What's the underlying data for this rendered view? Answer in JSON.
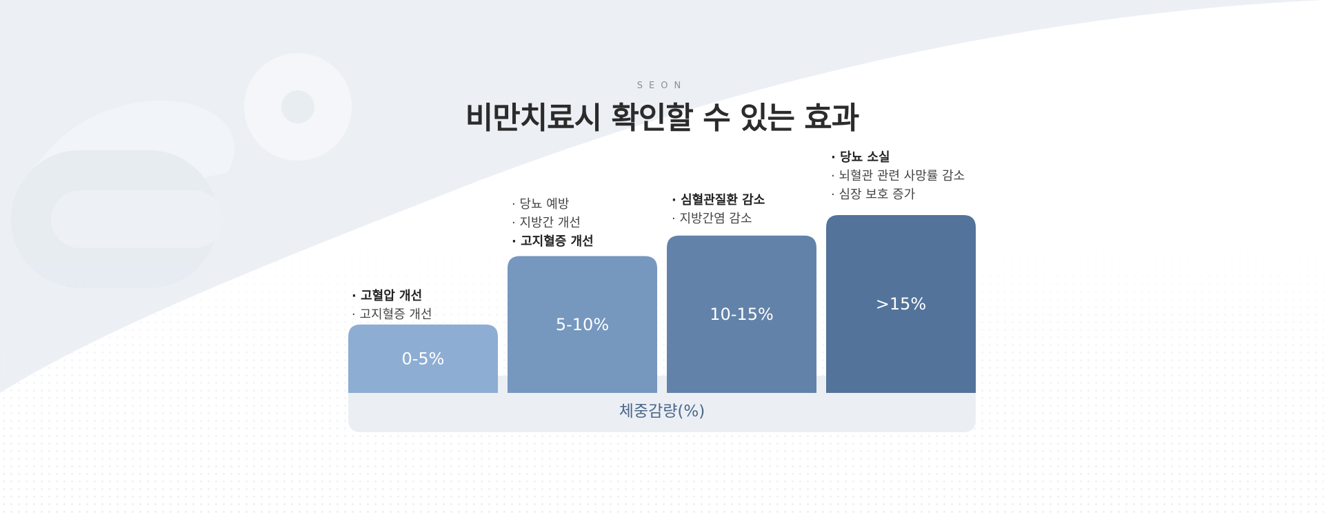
{
  "brand": "SEON",
  "title": "비만치료시 확인할 수 있는 효과",
  "colors": {
    "bar_1": "#8dadd3",
    "bar_2": "#7697be",
    "bar_3": "#6282a9",
    "bar_4": "#53739a",
    "axis_band": "#ebeff4",
    "axis_text": "#4a6788",
    "bar_text": "#ffffff"
  },
  "chart_data": {
    "type": "bar",
    "title": "비만치료시 확인할 수 있는 효과",
    "xlabel": "체중감량(%)",
    "ylabel": "",
    "categories": [
      "0-5%",
      "5-10%",
      "10-15%",
      ">15%"
    ],
    "values": [
      1,
      2,
      2.3,
      2.6
    ],
    "ylim": [
      0,
      2.6
    ],
    "grid": false,
    "legend": "none",
    "annotations": [
      {
        "category": "0-5%",
        "items": [
          {
            "text": "· 고혈압 개선",
            "bold": true
          },
          {
            "text": "· 고지혈증 개선",
            "bold": false
          }
        ]
      },
      {
        "category": "5-10%",
        "items": [
          {
            "text": "· 당뇨 예방",
            "bold": false
          },
          {
            "text": "· 지방간 개선",
            "bold": false
          },
          {
            "text": "· 고지혈증 개선",
            "bold": true
          }
        ]
      },
      {
        "category": "10-15%",
        "items": [
          {
            "text": "· 심혈관질환 감소",
            "bold": true
          },
          {
            "text": "· 지방간염 감소",
            "bold": false
          }
        ]
      },
      {
        "category": ">15%",
        "items": [
          {
            "text": "· 당뇨 소실",
            "bold": true
          },
          {
            "text": "· 뇌혈관 관련 사망률 감소",
            "bold": false
          },
          {
            "text": "· 심장 보호 증가",
            "bold": false
          }
        ]
      }
    ]
  }
}
